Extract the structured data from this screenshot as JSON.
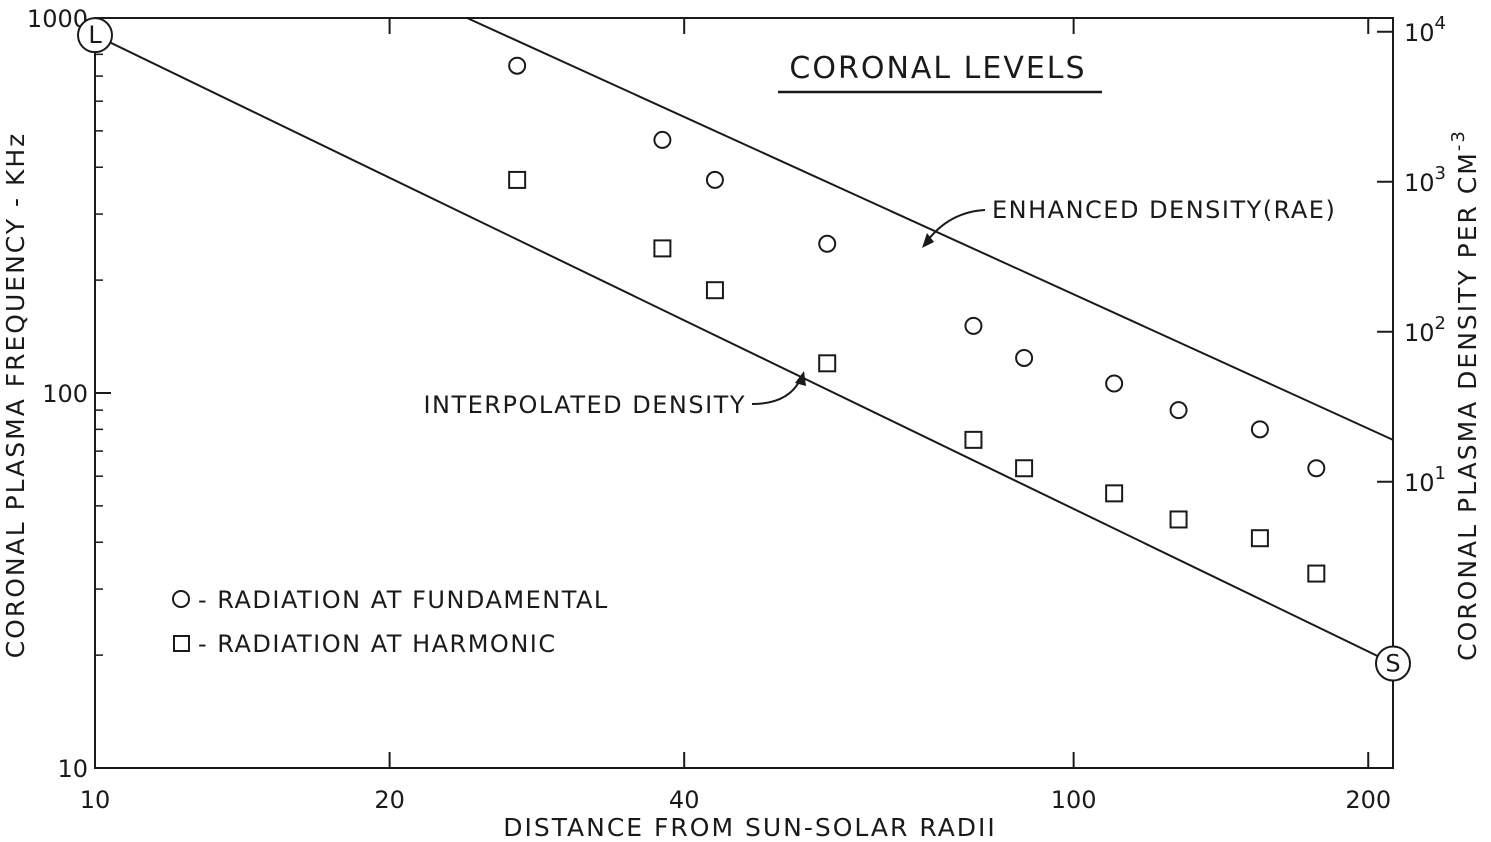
{
  "chart_data": {
    "type": "scatter",
    "title": "CORONAL LEVELS",
    "xlabel": "DISTANCE FROM SUN-SOLAR RADII",
    "ylabel": "CORONAL PLASMA FREQUENCY - KHz",
    "y2label": "CORONAL PLASMA DENSITY PER CM",
    "y2label_exp": "-3",
    "xscale": "log",
    "yscale": "log",
    "xlim": [
      10,
      212
    ],
    "ylim": [
      10,
      1000
    ],
    "y2lim": [
      0.1235,
      12350
    ],
    "x_tick_labels": [
      {
        "value": 10,
        "label": "10"
      },
      {
        "value": 20,
        "label": "20"
      },
      {
        "value": 40,
        "label": "40"
      },
      {
        "value": 100,
        "label": "100"
      },
      {
        "value": 200,
        "label": "200"
      }
    ],
    "y_tick_labels": [
      {
        "value": 10,
        "label": "10"
      },
      {
        "value": 100,
        "label": "100"
      },
      {
        "value": 1000,
        "label": "1000"
      }
    ],
    "y_minor_ticks": [
      20,
      30,
      40,
      50,
      60,
      70,
      80,
      90,
      200,
      300,
      400,
      500,
      600,
      700,
      800,
      900
    ],
    "y2_tick_labels": [
      {
        "value": 10,
        "base": "10",
        "exp": "1"
      },
      {
        "value": 100,
        "base": "10",
        "exp": "2"
      },
      {
        "value": 1000,
        "base": "10",
        "exp": "3"
      },
      {
        "value": 10000,
        "base": "10",
        "exp": "4"
      }
    ],
    "series": [
      {
        "name": "RADIATION AT FUNDAMENTAL",
        "marker": "circle",
        "x": [
          27,
          38,
          43,
          56,
          79,
          89,
          110,
          128,
          155,
          177
        ],
        "y": [
          746,
          473,
          370,
          250,
          151,
          124,
          106,
          90,
          80,
          63
        ]
      },
      {
        "name": "RADIATION AT HARMONIC",
        "marker": "square",
        "x": [
          27,
          38,
          43,
          56,
          79,
          89,
          110,
          128,
          155,
          177
        ],
        "y": [
          370,
          243,
          188,
          120,
          75,
          63,
          54,
          46,
          41,
          33
        ]
      }
    ],
    "lines": [
      {
        "name": "ENHANCED DENSITY (RAE)",
        "x": [
          24,
          212
        ],
        "y": [
          1000,
          75
        ]
      },
      {
        "name": "INTERPOLATED DENSITY",
        "x": [
          10,
          212
        ],
        "y": [
          900,
          19
        ]
      }
    ],
    "annotations": [
      {
        "text": "ENHANCED DENSITY(RAE)"
      },
      {
        "text": "INTERPOLATED DENSITY"
      }
    ],
    "end_labels": [
      {
        "text": "L",
        "x": 10,
        "y": 900
      },
      {
        "text": "S",
        "x": 212,
        "y": 19
      }
    ],
    "legend": {
      "position": "bottom-left",
      "items": [
        {
          "marker": "circle",
          "text": "- RADIATION AT FUNDAMENTAL"
        },
        {
          "marker": "square",
          "text": "- RADIATION AT HARMONIC"
        }
      ]
    },
    "grid": false
  }
}
